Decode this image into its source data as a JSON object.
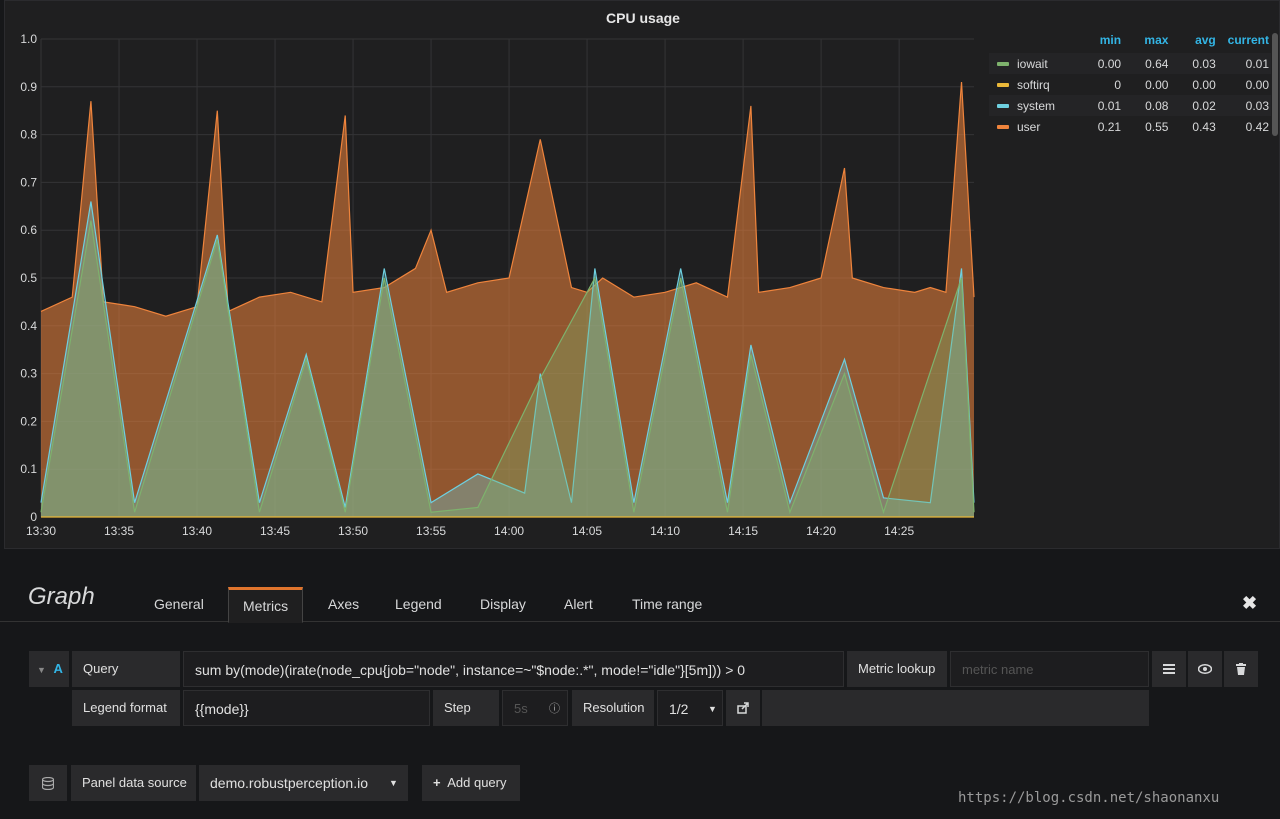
{
  "panel": {
    "title": "CPU usage"
  },
  "chart_data": {
    "type": "area",
    "title": "CPU usage",
    "xlabel": "",
    "ylabel": "",
    "ylim": [
      0,
      1.0
    ],
    "yticks": [
      "0",
      "0.1",
      "0.2",
      "0.3",
      "0.4",
      "0.5",
      "0.6",
      "0.7",
      "0.8",
      "0.9",
      "1.0"
    ],
    "xticks": [
      "13:30",
      "13:35",
      "13:40",
      "13:45",
      "13:50",
      "13:55",
      "14:00",
      "14:05",
      "14:10",
      "14:15",
      "14:20",
      "14:25"
    ],
    "xrange_minutes": [
      0,
      59.8
    ],
    "grid": true,
    "legend_placement": "right",
    "colors": {
      "iowait": "#7eb26d",
      "softirq": "#eab839",
      "system": "#6ed0e0",
      "user": "#ef843c"
    },
    "series": [
      {
        "name": "user",
        "x_minutes": [
          0,
          2,
          3.2,
          4,
          6,
          8,
          10,
          11.3,
          12,
          14,
          16,
          18,
          19.5,
          20,
          22,
          24,
          25,
          26,
          28,
          30,
          32,
          34,
          35,
          36,
          38,
          40,
          42,
          44,
          45.5,
          46,
          48,
          50,
          51.5,
          52,
          54,
          56,
          57,
          58,
          59,
          59.8
        ],
        "values": [
          0.43,
          0.46,
          0.87,
          0.45,
          0.44,
          0.42,
          0.44,
          0.85,
          0.43,
          0.46,
          0.47,
          0.45,
          0.84,
          0.47,
          0.48,
          0.52,
          0.6,
          0.47,
          0.49,
          0.5,
          0.79,
          0.48,
          0.47,
          0.5,
          0.46,
          0.47,
          0.49,
          0.46,
          0.86,
          0.47,
          0.48,
          0.5,
          0.73,
          0.5,
          0.48,
          0.47,
          0.48,
          0.47,
          0.91,
          0.46
        ]
      },
      {
        "name": "system",
        "x_minutes": [
          0,
          3.2,
          6,
          11.3,
          14,
          17,
          19.5,
          22,
          25,
          28,
          31,
          32,
          34,
          35.5,
          38,
          41,
          44,
          45.5,
          48,
          51.5,
          54,
          57,
          59,
          59.8
        ],
        "values": [
          0.03,
          0.66,
          0.03,
          0.59,
          0.03,
          0.34,
          0.02,
          0.52,
          0.03,
          0.09,
          0.05,
          0.3,
          0.03,
          0.52,
          0.03,
          0.52,
          0.03,
          0.36,
          0.03,
          0.33,
          0.04,
          0.03,
          0.52,
          0.03
        ]
      },
      {
        "name": "iowait",
        "x_minutes": [
          0,
          3.2,
          6,
          11.3,
          14,
          17,
          19.5,
          22,
          25,
          28,
          32,
          35.5,
          38,
          41,
          44,
          45.5,
          48,
          51.5,
          54,
          59,
          59.8
        ],
        "values": [
          0.01,
          0.62,
          0.01,
          0.58,
          0.01,
          0.33,
          0.01,
          0.5,
          0.01,
          0.02,
          0.29,
          0.5,
          0.01,
          0.5,
          0.01,
          0.34,
          0.01,
          0.3,
          0.01,
          0.5,
          0.01
        ]
      },
      {
        "name": "softirq",
        "x_minutes": [
          0,
          59.8
        ],
        "values": [
          0,
          0
        ]
      }
    ]
  },
  "legend": {
    "headers": [
      "min",
      "max",
      "avg",
      "current"
    ],
    "rows": [
      {
        "name": "iowait",
        "color": "#7eb26d",
        "min": "0.00",
        "max": "0.64",
        "avg": "0.03",
        "current": "0.01"
      },
      {
        "name": "softirq",
        "color": "#eab839",
        "min": "0",
        "max": "0.00",
        "avg": "0.00",
        "current": "0.00"
      },
      {
        "name": "system",
        "color": "#6ed0e0",
        "min": "0.01",
        "max": "0.08",
        "avg": "0.02",
        "current": "0.03"
      },
      {
        "name": "user",
        "color": "#ef843c",
        "min": "0.21",
        "max": "0.55",
        "avg": "0.43",
        "current": "0.42"
      }
    ]
  },
  "editor": {
    "title": "Graph",
    "tabs": [
      "General",
      "Metrics",
      "Axes",
      "Legend",
      "Display",
      "Alert",
      "Time range"
    ],
    "active_tab": "Metrics",
    "close_icon": "close-icon"
  },
  "query": {
    "ref_id": "A",
    "query_label": "Query",
    "query_value": "sum by(mode)(irate(node_cpu{job=\"node\", instance=~\"$node:.*\", mode!=\"idle\"}[5m])) > 0",
    "metric_lookup_label": "Metric lookup",
    "metric_placeholder": "metric name",
    "legend_format_label": "Legend format",
    "legend_format_value": "{{mode}}",
    "step_label": "Step",
    "step_placeholder": "5s",
    "resolution_label": "Resolution",
    "resolution_value": "1/2"
  },
  "footer": {
    "data_source_label": "Panel data source",
    "data_source_value": "demo.robustperception.io",
    "add_query_label": "Add query"
  },
  "watermark": "https://blog.csdn.net/shaonanxu"
}
